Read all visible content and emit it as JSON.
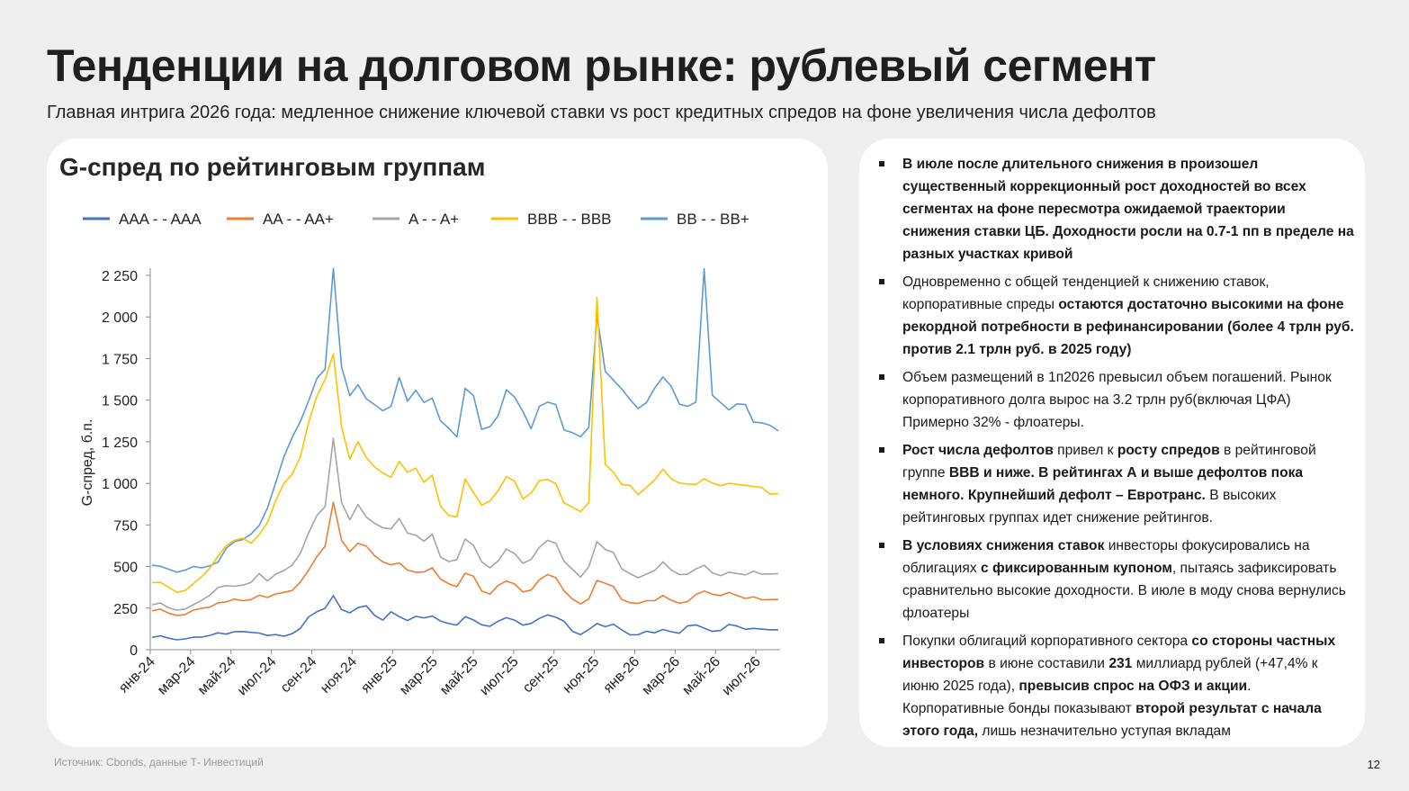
{
  "slide": {
    "title": "Тенденции на долговом рынке: рублевый сегмент",
    "subtitle": "Главная интрига 2026 года: медленное снижение ключевой ставки vs рост кредитных спредов на фоне увеличения числа дефолтов",
    "source": "Источник: Cbonds, данные Т- Инвестиций",
    "page_number": "12"
  },
  "chart_data": {
    "type": "line",
    "title": "G-спред по рейтинговым группам",
    "ylabel": "G-спред, б.п.",
    "xlabel": "",
    "ylim": [
      0,
      2250
    ],
    "y_ticks": [
      0,
      250,
      500,
      750,
      1000,
      1250,
      1500,
      1750,
      2000,
      2250
    ],
    "y_tick_labels": [
      "0",
      "250",
      "500",
      "750",
      "1 000",
      "1 250",
      "1 500",
      "1 750",
      "2 000",
      "2 250"
    ],
    "x_ticks": [
      "янв-24",
      "мар-24",
      "май-24",
      "июл-24",
      "сен-24",
      "ноя-24",
      "янв-25",
      "мар-25",
      "май-25",
      "июл-25",
      "сен-25",
      "ноя-25",
      "янв-26",
      "мар-26",
      "май-26",
      "июл-26"
    ],
    "legend_position": "top",
    "grid": false,
    "series": [
      {
        "name": "AAA - - AAA",
        "color": "#4472c4",
        "values": [
          75,
          85,
          70,
          60,
          65,
          75,
          75,
          85,
          100,
          95,
          110,
          110,
          105,
          100,
          85,
          90,
          80,
          95,
          130,
          200,
          230,
          250,
          325,
          240,
          220,
          250,
          260,
          210,
          180,
          230,
          200,
          175,
          200,
          190,
          200,
          170,
          160,
          150,
          200,
          180,
          150,
          140,
          170,
          190,
          175,
          150,
          160,
          190,
          210,
          195,
          170,
          110,
          90,
          120,
          160,
          140,
          155,
          120,
          90,
          90,
          110,
          100,
          120,
          110,
          100,
          145,
          150,
          130,
          110,
          115,
          150,
          140,
          125,
          130,
          125,
          120,
          120
        ]
      },
      {
        "name": "AA - - AA+",
        "color": "#ed7d31",
        "values": [
          235,
          245,
          220,
          205,
          210,
          235,
          245,
          260,
          285,
          290,
          305,
          295,
          300,
          325,
          310,
          330,
          350,
          360,
          410,
          480,
          560,
          620,
          880,
          650,
          580,
          650,
          630,
          570,
          530,
          510,
          520,
          475,
          460,
          460,
          500,
          430,
          400,
          380,
          460,
          440,
          350,
          330,
          380,
          420,
          400,
          350,
          360,
          420,
          450,
          430,
          350,
          300,
          280,
          310,
          420,
          400,
          380,
          300,
          280,
          275,
          290,
          300,
          330,
          300,
          280,
          290,
          330,
          350,
          330,
          320,
          350,
          330,
          310,
          320,
          300,
          300,
          300
        ]
      },
      {
        "name": "A - - A+",
        "color": "#a5a5a5",
        "values": [
          270,
          280,
          250,
          235,
          240,
          275,
          300,
          330,
          375,
          385,
          380,
          385,
          400,
          450,
          420,
          460,
          480,
          510,
          580,
          700,
          800,
          850,
          1250,
          900,
          790,
          880,
          800,
          760,
          730,
          720,
          780,
          690,
          700,
          660,
          700,
          560,
          530,
          540,
          660,
          620,
          520,
          500,
          540,
          610,
          580,
          520,
          540,
          610,
          650,
          630,
          540,
          490,
          440,
          500,
          650,
          600,
          580,
          480,
          450,
          440,
          460,
          480,
          530,
          480,
          450,
          450,
          480,
          500,
          470,
          450,
          470,
          460,
          450,
          470,
          450,
          450,
          450
        ]
      },
      {
        "name": "BBB - - BBB",
        "color": "#ffc000",
        "values": [
          400,
          400,
          370,
          350,
          360,
          400,
          440,
          490,
          560,
          620,
          650,
          660,
          650,
          700,
          770,
          900,
          1000,
          1050,
          1150,
          1350,
          1500,
          1650,
          1800,
          1350,
          1150,
          1250,
          1150,
          1090,
          1050,
          1020,
          1150,
          1080,
          1100,
          1010,
          1050,
          860,
          800,
          790,
          1010,
          960,
          880,
          900,
          960,
          1040,
          1010,
          900,
          930,
          1000,
          1040,
          1010,
          890,
          860,
          830,
          880,
          2100,
          1100,
          1050,
          1010,
          1000,
          940,
          980,
          1020,
          1080,
          1020,
          990,
          980,
          1010,
          1040,
          1010,
          990,
          1000,
          990,
          980,
          970,
          960,
          950,
          950
        ]
      },
      {
        "name": "BB - - BB+",
        "color": "#5b9bd5",
        "values": [
          500,
          510,
          490,
          470,
          480,
          500,
          490,
          500,
          520,
          600,
          660,
          670,
          700,
          750,
          850,
          1000,
          1150,
          1260,
          1350,
          1520,
          1650,
          1700,
          2300,
          1700,
          1520,
          1580,
          1490,
          1450,
          1460,
          1480,
          1650,
          1500,
          1560,
          1480,
          1500,
          1360,
          1310,
          1300,
          1590,
          1540,
          1330,
          1340,
          1400,
          1550,
          1500,
          1410,
          1350,
          1480,
          1500,
          1480,
          1320,
          1300,
          1270,
          1320,
          1980,
          1700,
          1640,
          1580,
          1510,
          1450,
          1480,
          1560,
          1620,
          1560,
          1500,
          1480,
          1500,
          2300,
          1530,
          1480,
          1430,
          1460,
          1450,
          1390,
          1380,
          1360,
          1320
        ]
      }
    ]
  },
  "bullets": [
    [
      [
        "b",
        "В июле после длительного снижения в произошел существенный коррекционный рост доходностей во всех сегментах на фоне пересмотра ожидаемой траектории снижения ставки ЦБ. Доходности росли на 0.7-1 пп в пределе на разных участках кривой"
      ]
    ],
    [
      [
        "t",
        "Одновременно с общей тенденцией к снижению ставок, корпоративные спреды "
      ],
      [
        "b",
        "остаются достаточно высокими на фоне рекордной потребности в рефинансировании (более 4 трлн руб. против 2.1 трлн руб. в 2025 году)"
      ]
    ],
    [
      [
        "t",
        "Объем размещений в 1п2026 превысил объем погашений. Рынок корпоративного долга вырос на 3.2 трлн руб(включая ЦФА) Примерно 32% - флоатеры."
      ]
    ],
    [
      [
        "b",
        "Рост числа дефолтов"
      ],
      [
        "t",
        " привел к "
      ],
      [
        "b",
        "росту спредов"
      ],
      [
        "t",
        " в рейтинговой группе "
      ],
      [
        "b",
        "ВВВ и ниже. В рейтингах А и выше дефолтов пока немного. Крупнейший дефолт – Евротранс."
      ],
      [
        "t",
        " В высоких рейтинговых группах идет снижение рейтингов."
      ]
    ],
    [
      [
        "b",
        "В условиях снижения ставок"
      ],
      [
        "t",
        " инвесторы фокусировались на облигациях "
      ],
      [
        "b",
        "с фиксированным купоном"
      ],
      [
        "t",
        ", пытаясь зафиксировать сравнительно высокие доходности. В июле в моду снова вернулись флоатеры"
      ]
    ],
    [
      [
        "t",
        "Покупки облигаций корпоративного сектора "
      ],
      [
        "b",
        "со стороны частных инвесторов"
      ],
      [
        "t",
        " в июне составили "
      ],
      [
        "b",
        "231"
      ],
      [
        "t",
        " миллиард рублей (+47,4% к июню 2025 года), "
      ],
      [
        "b",
        "превысив спрос на ОФЗ и акции"
      ],
      [
        "t",
        ". Корпоративные бонды показывают "
      ],
      [
        "b",
        "второй результат с начала этого года,"
      ],
      [
        "t",
        " лишь незначительно уступая вкладам"
      ]
    ]
  ]
}
